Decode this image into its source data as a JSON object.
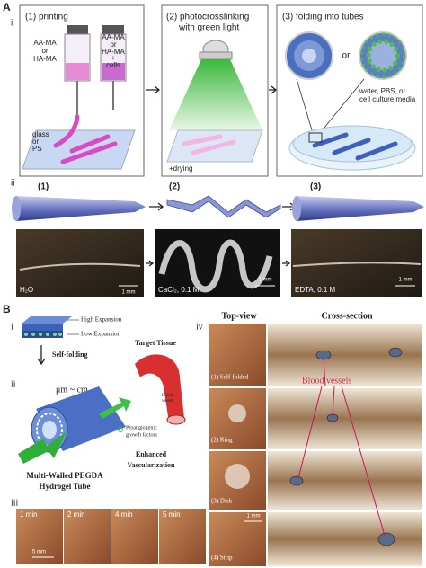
{
  "panel_a": {
    "label": "A",
    "part_i": "i",
    "step_1": "(1) printing",
    "step_2": [
      "(2) photocrosslinking",
      "with green light"
    ],
    "step_3": "(3) folding into tubes",
    "vial_1": [
      "AA-MA",
      "or",
      "HA-MA"
    ],
    "vial_2": [
      "AA-MA",
      "or",
      "HA-MA",
      "+",
      "cells"
    ],
    "substrate": [
      "glass",
      "or",
      "PS"
    ],
    "drying": "+drying",
    "or": "or",
    "media": [
      "water, PBS, or",
      "cell culture media"
    ],
    "part_ii": "ii",
    "stages": [
      "(1)",
      "(2)",
      "(3)"
    ],
    "photos": [
      {
        "medium": "H₂O",
        "scale": "1 mm"
      },
      {
        "medium": "CaCl₂, 0.1 M",
        "scale": "1 mm"
      },
      {
        "medium": "EDTA, 0.1 M",
        "scale": "1 mm"
      }
    ]
  },
  "panel_b": {
    "label": "B",
    "part_i": "i",
    "high": "High Expansion",
    "low": "Low Expansion",
    "self_folding": "Self-folding",
    "part_ii": "ii",
    "size": "μm ~ cm",
    "target": "Target Tissue",
    "vessel": [
      "Blood",
      "vessel"
    ],
    "growth": [
      "Proangiogenic",
      "growth factors"
    ],
    "enhanced": [
      "Enhanced",
      "Vascularization"
    ],
    "tube": [
      "Multi-Walled PEGDA",
      "Hydrogel Tube"
    ],
    "part_iii": "iii",
    "times": [
      "1 min",
      "2 min",
      "4 min",
      "5 min"
    ],
    "time_scale": "5 mm",
    "part_iv": "iv",
    "top_view": "Top-view",
    "cross_section": "Cross-section",
    "samples": [
      "(1) Self-folded",
      "(2) Ring",
      "(3) Disk",
      "(4) Strip"
    ],
    "blood_vessels": "Blood vessels",
    "top_scale": "1 mm"
  }
}
